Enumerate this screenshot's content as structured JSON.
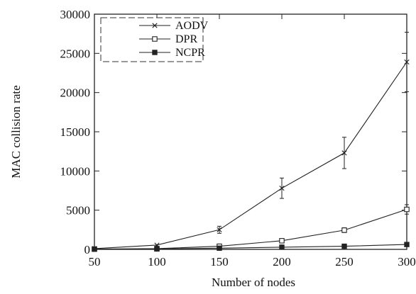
{
  "chart_data": {
    "type": "line",
    "xlabel": "Number of nodes",
    "ylabel": "MAC collision rate",
    "x": [
      50,
      100,
      150,
      200,
      250,
      300
    ],
    "xlim": [
      50,
      300
    ],
    "ylim": [
      0,
      30000
    ],
    "xticks": [
      "50",
      "100",
      "150",
      "200",
      "250",
      "300"
    ],
    "yticks": [
      "0",
      "5000",
      "10000",
      "15000",
      "20000",
      "25000",
      "30000"
    ],
    "grid": false,
    "legend_position": "top-left",
    "series": [
      {
        "name": "AODV",
        "marker": "x",
        "color": "#222222",
        "values": [
          100,
          550,
          2500,
          7800,
          12300,
          23900
        ],
        "error": [
          50,
          120,
          450,
          1300,
          2000,
          3800
        ]
      },
      {
        "name": "DPR",
        "marker": "open-square",
        "color": "#222222",
        "values": [
          40,
          100,
          400,
          1100,
          2450,
          5100
        ],
        "error": [
          20,
          40,
          100,
          180,
          300,
          600
        ]
      },
      {
        "name": "NCPR",
        "marker": "filled-square",
        "color": "#222222",
        "values": [
          20,
          50,
          150,
          280,
          400,
          620
        ],
        "error": [
          10,
          15,
          30,
          50,
          60,
          80
        ]
      }
    ]
  }
}
